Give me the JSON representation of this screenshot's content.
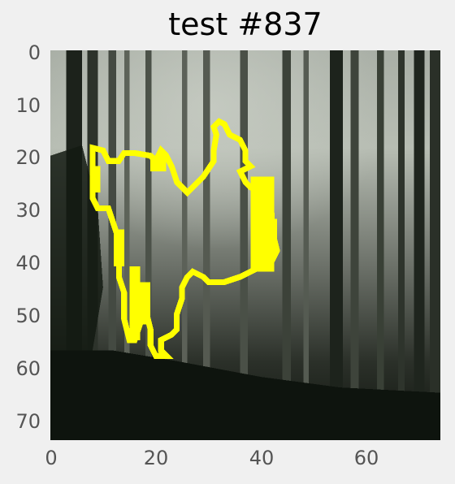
{
  "title": "test #837",
  "image": {
    "description_kind": "photo",
    "subject": "dark misty forest of tall tree trunks",
    "overlay_color": "#ffff00",
    "overlay_kind": "segmentation contour"
  },
  "axes": {
    "xlim": [
      0,
      74
    ],
    "ylim": [
      74,
      0
    ],
    "x_ticks": [
      "0",
      "20",
      "40",
      "60"
    ],
    "y_ticks": [
      "0",
      "10",
      "20",
      "30",
      "40",
      "50",
      "60",
      "70"
    ],
    "grid": false
  },
  "colors": {
    "background": "#f0f0f0",
    "tick_text": "#555555",
    "dark_ground": "#0e140e",
    "mist": "#b4bab0"
  }
}
